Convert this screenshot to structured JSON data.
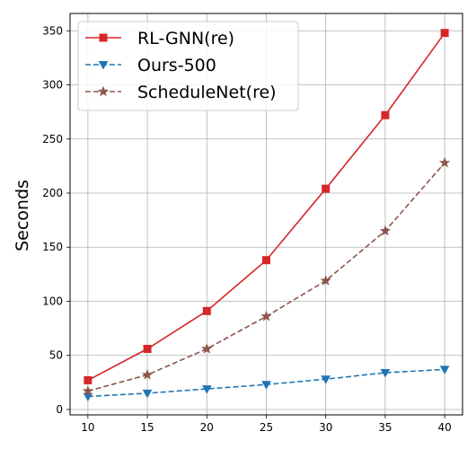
{
  "chart_data": {
    "type": "line",
    "title": "",
    "xlabel": "",
    "ylabel": "Seconds",
    "x": [
      10,
      15,
      20,
      25,
      30,
      35,
      40
    ],
    "xticks": [
      10,
      15,
      20,
      25,
      30,
      35,
      40
    ],
    "yticks": [
      0,
      50,
      100,
      150,
      200,
      250,
      300,
      350
    ],
    "xlim": [
      8.5,
      41.5
    ],
    "ylim": [
      -5,
      366
    ],
    "grid": true,
    "legend_position": "upper-left",
    "series": [
      {
        "name": "RL-GNN(re)",
        "values": [
          27,
          56,
          91,
          138,
          204,
          272,
          348
        ],
        "color": "#d62728",
        "line_style": "solid",
        "marker": "square"
      },
      {
        "name": "Ours-500",
        "values": [
          12,
          15,
          19,
          23,
          28,
          34,
          37
        ],
        "color": "#1f77b4",
        "line_style": "dashed",
        "marker": "triangle-down"
      },
      {
        "name": "ScheduleNet(re)",
        "values": [
          17,
          32,
          56,
          86,
          119,
          165,
          228
        ],
        "color": "#8c564b",
        "line_style": "dashed",
        "marker": "star"
      }
    ]
  }
}
